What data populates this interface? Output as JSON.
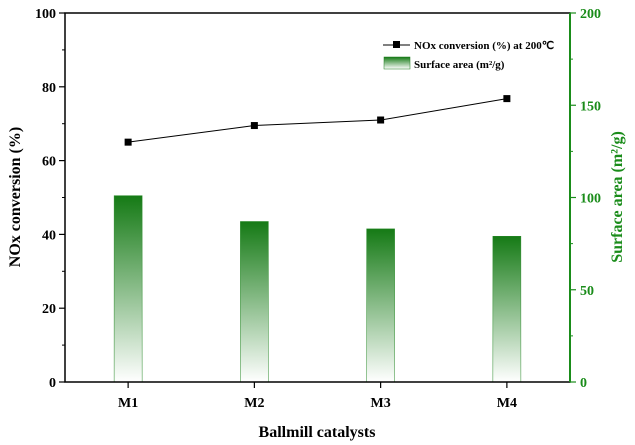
{
  "chart_data": {
    "type": "bar",
    "categories": [
      "M1",
      "M2",
      "M3",
      "M4"
    ],
    "xlabel": "Ballmill catalysts",
    "series": [
      {
        "name": "NOx conversion (%) at 200℃",
        "kind": "line",
        "axis": "left",
        "color": "#000000",
        "values": [
          65.0,
          69.5,
          71.0,
          76.8
        ]
      },
      {
        "name": "Surface area (m²/g)",
        "kind": "bar",
        "axis": "right",
        "color": "#1a7a1a",
        "values": [
          101,
          87,
          83,
          79
        ]
      }
    ],
    "y_left": {
      "label": "NOx conversion (%)",
      "ylim": [
        0,
        100
      ],
      "ticks": [
        0,
        20,
        40,
        60,
        80,
        100
      ],
      "color": "#000000"
    },
    "y_right": {
      "label": "Surface area (m²/g)",
      "ylim": [
        0,
        200
      ],
      "ticks": [
        0,
        50,
        100,
        150,
        200
      ],
      "color": "#1a8c1a"
    },
    "legend": {
      "placement": "top-right",
      "entries": [
        "NOx conversion (%) at 200℃",
        "Surface area (m²/g)"
      ]
    },
    "grid": false
  }
}
